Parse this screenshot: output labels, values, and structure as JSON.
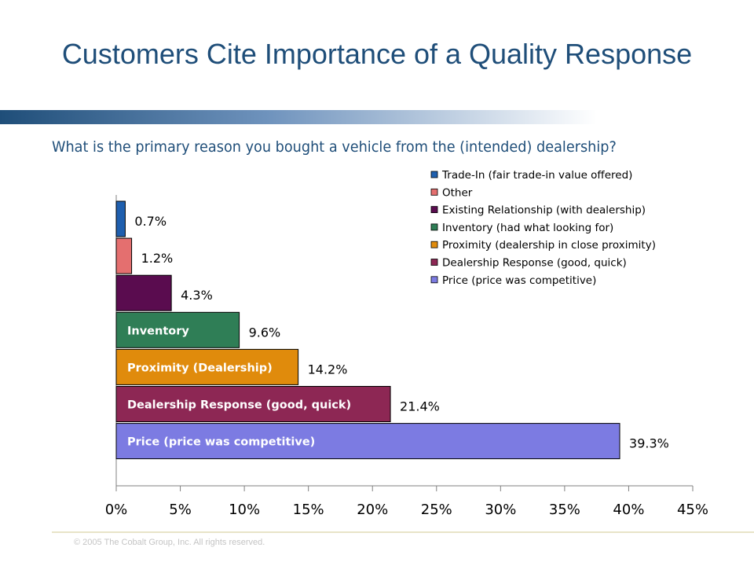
{
  "slide": {
    "title": "Customers Cite Importance of a Quality Response",
    "subtitle": "What is the primary reason you bought a vehicle from the (intended) dealership?",
    "footer": "© 2005 The Cobalt Group, Inc. All rights reserved."
  },
  "chart_data": {
    "type": "bar",
    "orientation": "horizontal",
    "categories": [
      "Trade-In (fair trade-in value offered)",
      "Other",
      "Existing Relationship (with dealership)",
      "Inventory (had what looking for)",
      "Proximity (dealership in close proximity)",
      "Dealership Response (good, quick)",
      "Price (price was competitive)"
    ],
    "values": [
      0.7,
      1.2,
      4.3,
      9.6,
      14.2,
      21.4,
      39.3
    ],
    "value_labels": [
      "0.7%",
      "1.2%",
      "4.3%",
      "9.6%",
      "14.2%",
      "21.4%",
      "39.3%"
    ],
    "bar_labels": [
      "",
      "",
      "",
      "Inventory",
      "Proximity (Dealership)",
      "Dealership Response (good, quick)",
      "Price (price was competitive)"
    ],
    "colors": [
      "#1f5fae",
      "#e46f6f",
      "#5a0c4f",
      "#2f7e56",
      "#e08b0c",
      "#8d2754",
      "#7c7be2"
    ],
    "xlim": [
      0,
      45
    ],
    "xticks": [
      0,
      5,
      10,
      15,
      20,
      25,
      30,
      35,
      40,
      45
    ],
    "xtick_labels": [
      "0%",
      "5%",
      "10%",
      "15%",
      "20%",
      "25%",
      "30%",
      "35%",
      "40%",
      "45%"
    ],
    "legend": {
      "position": "top-right",
      "entries": [
        "Trade-In (fair trade-in value offered)",
        "Other",
        "Existing Relationship (with dealership)",
        "Inventory (had what looking for)",
        "Proximity (dealership in close proximity)",
        "Dealership Response (good, quick)",
        "Price (price was competitive)"
      ]
    },
    "grid": false
  }
}
